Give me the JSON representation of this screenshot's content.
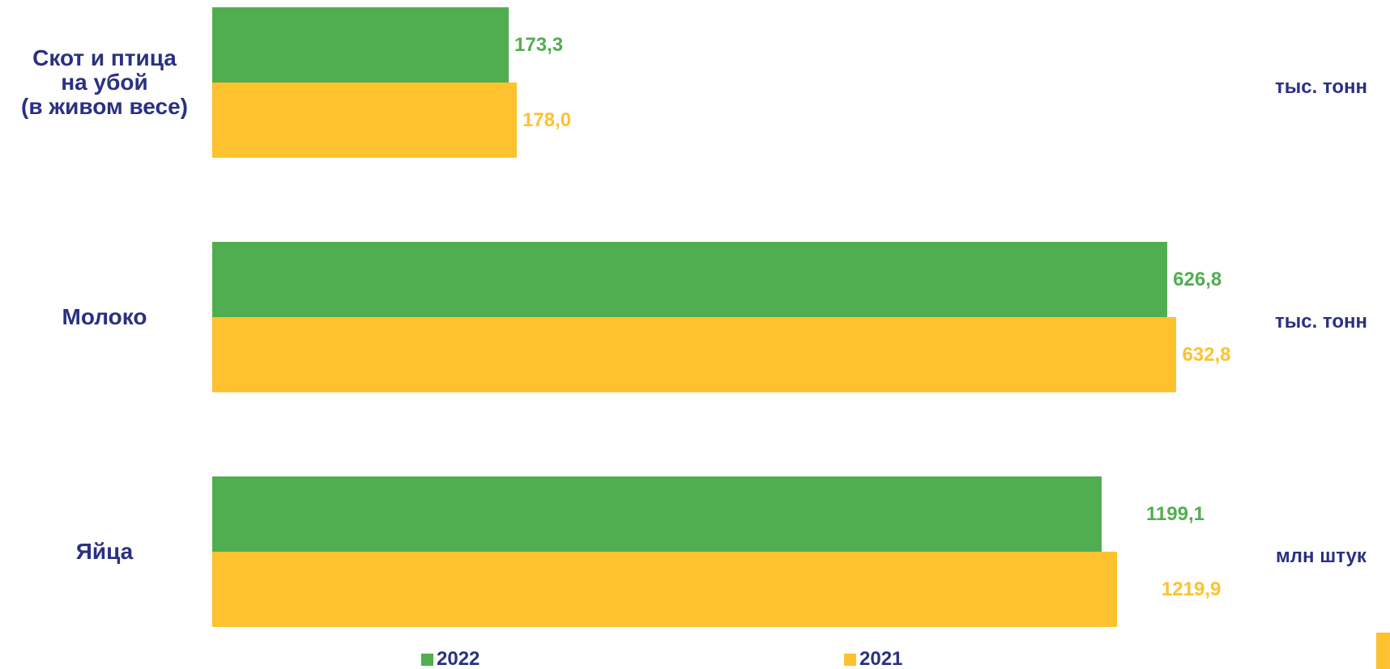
{
  "chart_data": {
    "type": "bar",
    "orientation": "horizontal",
    "categories": [
      "Скот и птица\nна убой\n(в живом весе)",
      "Молоко",
      "Яйца"
    ],
    "units": [
      "тыс. тонн",
      "тыс. тонн",
      "млн штук"
    ],
    "xlims": [
      [
        0,
        570
      ],
      [
        0,
        640
      ],
      [
        0,
        1315
      ]
    ],
    "series": [
      {
        "name": "2022",
        "color": "#50ae50",
        "values": [
          173.3,
          626.8,
          1199.1
        ],
        "value_labels": [
          "173,3",
          "626,8",
          "1199,1"
        ]
      },
      {
        "name": "2021",
        "color": "#fdc22e",
        "values": [
          178.0,
          632.8,
          1219.9
        ],
        "value_labels": [
          "178,0",
          "632,8",
          "1219,9"
        ]
      }
    ]
  }
}
